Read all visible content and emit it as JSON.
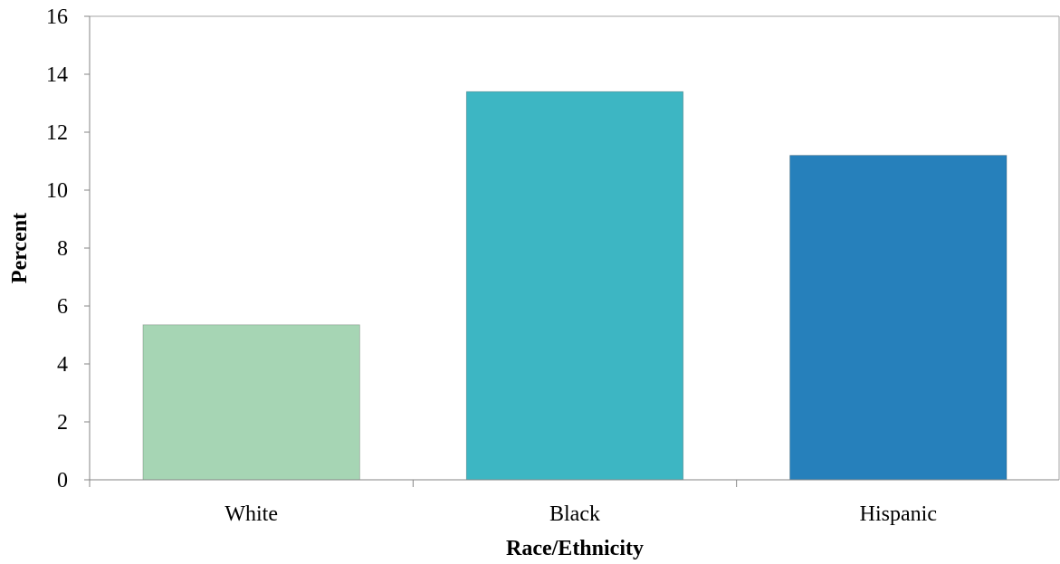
{
  "chart_data": {
    "type": "bar",
    "title": "",
    "xlabel": "Race/Ethnicity",
    "ylabel": "Percent",
    "categories": [
      "White",
      "Black",
      "Hispanic"
    ],
    "values": [
      5.35,
      13.4,
      11.2
    ],
    "colors": [
      "#a6d5b4",
      "#3db6c3",
      "#2680bb"
    ],
    "ylim": [
      0,
      16
    ],
    "yticks": [
      0,
      2,
      4,
      6,
      8,
      10,
      12,
      14,
      16
    ],
    "grid": false,
    "legend": "none"
  }
}
